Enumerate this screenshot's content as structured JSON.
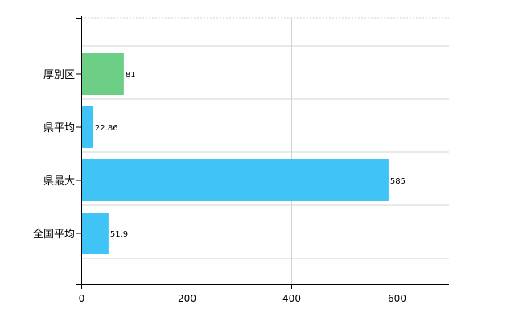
{
  "chart_data": {
    "type": "bar",
    "orientation": "horizontal",
    "categories": [
      "厚別区",
      "県平均",
      "県最大",
      "全国平均"
    ],
    "values": [
      81,
      22.86,
      585,
      51.9
    ],
    "value_labels": [
      "81",
      "22.86",
      "585",
      "51.9"
    ],
    "bar_colors": [
      "#6dcf86",
      "#3fc4f5",
      "#3fc4f5",
      "#3fc4f5"
    ],
    "xlim": [
      0,
      700
    ],
    "xticks": [
      0,
      200,
      400,
      600
    ],
    "grid": true,
    "title": "",
    "xlabel": "",
    "ylabel": ""
  }
}
